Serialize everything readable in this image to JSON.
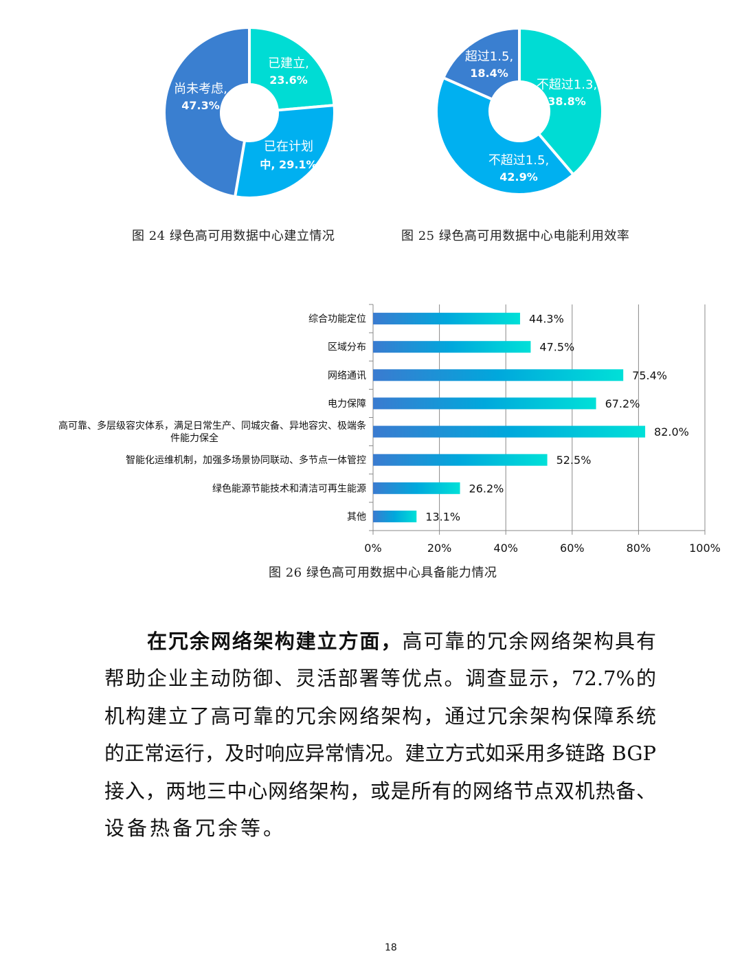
{
  "colors": {
    "dark_blue": "#3a7fd0",
    "blue": "#00b0f0",
    "cyan": "#00dcd4",
    "bar_start": "#3a7bd0",
    "bar_mid": "#00a8dc",
    "bar_end": "#00e0d8"
  },
  "figure24": {
    "caption": "图 24  绿色高可用数据中心建立情况",
    "chart_data": {
      "type": "pie",
      "donut": true,
      "slices": [
        {
          "label": "已建立,",
          "value_label": "23.6%",
          "value": 23.6,
          "color": "#00dcd4"
        },
        {
          "label": "已在计划",
          "label2": "中, 29.1%",
          "value_label": "",
          "value": 29.1,
          "color": "#00b0f0"
        },
        {
          "label": "尚未考虑,",
          "value_label": "47.3%",
          "value": 47.3,
          "color": "#3a7fd0"
        }
      ]
    }
  },
  "figure25": {
    "caption": "图  25  绿色高可用数据中心电能利用效率",
    "chart_data": {
      "type": "pie",
      "donut": true,
      "slices": [
        {
          "label": "不超过1.3,",
          "value_label": "38.8%",
          "value": 38.8,
          "color": "#00dcd4"
        },
        {
          "label": "不超过1.5,",
          "value_label": "42.9%",
          "value": 42.9,
          "color": "#00b0f0"
        },
        {
          "label": "超过1.5,",
          "value_label": "18.4%",
          "value": 18.4,
          "color": "#3a7fd0"
        }
      ]
    }
  },
  "figure26": {
    "caption": "图  26  绿色高可用数据中心具备能力情况",
    "chart_data": {
      "type": "bar",
      "orientation": "horizontal",
      "grid": true,
      "categories": [
        [
          "综合功能定位"
        ],
        [
          "区域分布"
        ],
        [
          "网络通讯"
        ],
        [
          "电力保障"
        ],
        [
          "高可靠、多层级容灾体系，满足日常生产、同城灾备、异地容灾、极端条",
          "件能力保全"
        ],
        [
          "智能化运维机制，加强多场景协同联动、多节点一体管控"
        ],
        [
          "绿色能源节能技术和清洁可再生能源"
        ],
        [
          "其他"
        ]
      ],
      "values": [
        44.3,
        47.5,
        75.4,
        67.2,
        82.0,
        52.5,
        26.2,
        13.1
      ],
      "data_labels": [
        "44.3%",
        "47.5%",
        "75.4%",
        "67.2%",
        "82.0%",
        "52.5%",
        "26.2%",
        "13.1%"
      ],
      "xlim": [
        0,
        100
      ],
      "x_ticks": [
        "0%",
        "20%",
        "40%",
        "60%",
        "80%",
        "100%"
      ]
    }
  },
  "paragraph": {
    "lead": "在冗余网络架构建立方面，",
    "lines": [
      "高可靠的冗余网络架构具有",
      "帮助企业主动防御、灵活部署等优点。调查显示，72.7%的",
      "机构建立了高可靠的冗余网络架构，通过冗余架构保障系统",
      "的正常运行，及时响应异常情况。建立方式如采用多链路 BGP",
      "接入，两地三中心网络架构，或是所有的网络节点双机热备、",
      "设备热备冗余等。"
    ]
  },
  "page_number": "18"
}
